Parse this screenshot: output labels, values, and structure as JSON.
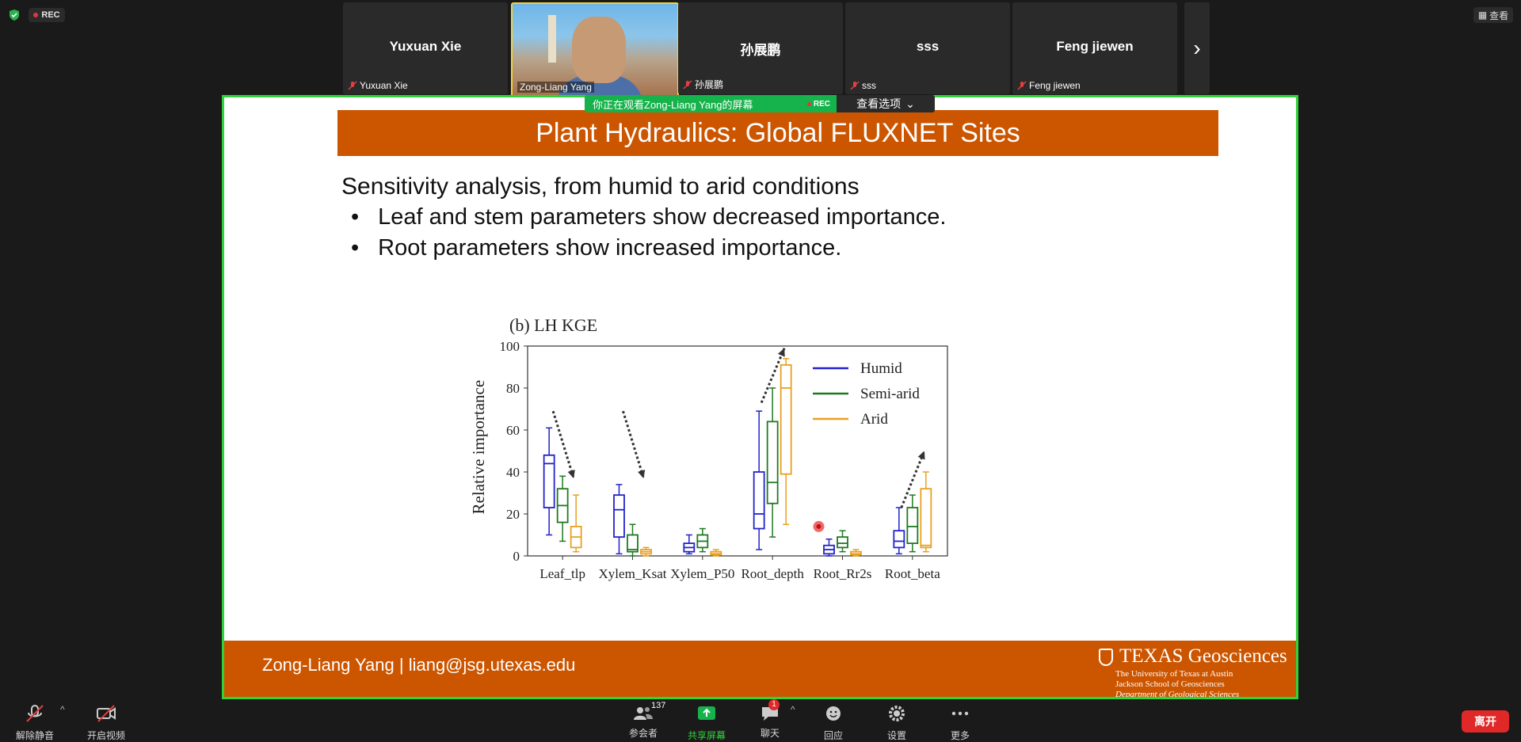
{
  "status": {
    "rec_label": "REC",
    "view_label": "查看"
  },
  "participants": [
    {
      "display_name": "Yuxuan Xie",
      "label": "Yuxuan Xie"
    },
    {
      "display_name": "",
      "label": "Zong-Liang Yang"
    },
    {
      "display_name": "孙展鹏",
      "label": "孙展鹏"
    },
    {
      "display_name": "sss",
      "label": "sss"
    },
    {
      "display_name": "Feng jiewen",
      "label": "Feng jiewen"
    }
  ],
  "share_banner": {
    "text": "你正在观看Zong-Liang Yang的屏幕",
    "rec": "REC",
    "view_options": "查看选项"
  },
  "slide": {
    "title": "Plant Hydraulics: Global FLUXNET Sites",
    "lead": "Sensitivity analysis, from humid to arid conditions",
    "bullets": [
      "Leaf and stem parameters show decreased importance.",
      "Root parameters show increased importance."
    ],
    "footer_author": "Zong-Liang Yang |  liang@jsg.utexas.edu",
    "logo": {
      "brand": "TEXAS Geosciences",
      "line1": "The University of Texas at Austin",
      "line2": "Jackson School of Geosciences",
      "line3": "Department of Geological Sciences"
    }
  },
  "chart_data": {
    "type": "box",
    "title": "(b) LH KGE",
    "ylabel": "Relative importance",
    "ylim": [
      0,
      100
    ],
    "yticks": [
      0,
      20,
      40,
      60,
      80,
      100
    ],
    "categories": [
      "Leaf_tlp",
      "Xylem_Ksat",
      "Xylem_P50",
      "Root_depth",
      "Root_Rr2s",
      "Root_beta"
    ],
    "legend_position": "top-right",
    "series": [
      {
        "name": "Humid",
        "color": "#2222cc",
        "boxes": [
          [
            10,
            23,
            44,
            48,
            61
          ],
          [
            1,
            9,
            22,
            29,
            34
          ],
          [
            1,
            2,
            4,
            6,
            10
          ],
          [
            3,
            13,
            20,
            40,
            69
          ],
          [
            0,
            1,
            3,
            5,
            8
          ],
          [
            1,
            4,
            7,
            12,
            23
          ]
        ]
      },
      {
        "name": "Semi-arid",
        "color": "#1f7a1f",
        "boxes": [
          [
            7,
            16,
            24,
            32,
            38
          ],
          [
            0,
            2,
            3,
            10,
            15
          ],
          [
            2,
            4,
            7,
            10,
            13
          ],
          [
            9,
            25,
            35,
            64,
            80
          ],
          [
            2,
            4,
            6,
            9,
            12
          ],
          [
            2,
            6,
            14,
            23,
            29
          ]
        ]
      },
      {
        "name": "Arid",
        "color": "#e8a020",
        "boxes": [
          [
            2,
            4,
            9,
            14,
            29
          ],
          [
            0,
            1,
            2,
            3,
            4
          ],
          [
            0,
            0.5,
            1,
            2,
            3
          ],
          [
            15,
            39,
            80,
            91,
            94
          ],
          [
            0,
            0.5,
            1,
            2,
            3
          ],
          [
            2,
            4,
            5,
            32,
            40
          ]
        ]
      }
    ],
    "trend_arrows": [
      {
        "category": "Leaf_tlp",
        "direction": "down"
      },
      {
        "category": "Xylem_Ksat",
        "direction": "down"
      },
      {
        "category": "Root_depth",
        "direction": "up"
      },
      {
        "category": "Root_beta",
        "direction": "up"
      }
    ]
  },
  "toolbar": {
    "unmute": "解除静音",
    "start_video": "开启视频",
    "participants": "参会者",
    "participants_count": "137",
    "share_screen": "共享屏幕",
    "chat": "聊天",
    "chat_badge": "1",
    "reactions": "回应",
    "settings": "设置",
    "more": "更多",
    "leave": "离开"
  },
  "colors": {
    "accent_green": "#30d33a",
    "slide_orange": "#cc5500",
    "leave_red": "#e02828"
  }
}
